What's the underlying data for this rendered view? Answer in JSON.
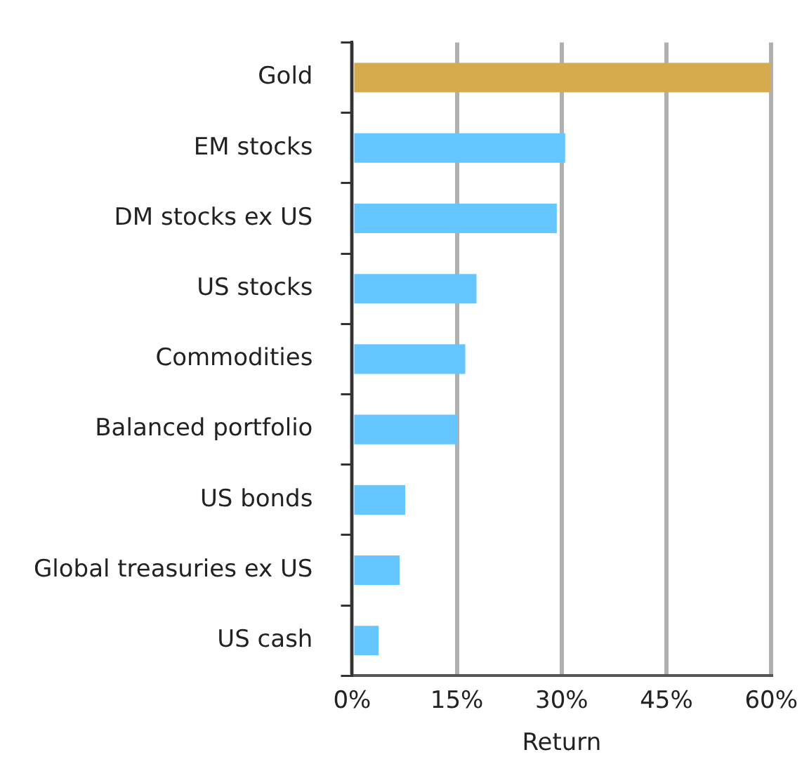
{
  "chart_data": {
    "type": "bar",
    "orientation": "horizontal",
    "xlabel": "Return",
    "categories": [
      "Gold",
      "EM stocks",
      "DM stocks ex US",
      "US stocks",
      "Commodities",
      "Balanced portfolio",
      "US bonds",
      "Global treasuries ex US",
      "US cash"
    ],
    "values": [
      60,
      30.5,
      29.3,
      17.8,
      16.2,
      15.1,
      7.6,
      6.8,
      3.8
    ],
    "colors": [
      "#d6aa4e",
      "#64c5ff",
      "#64c5ff",
      "#64c5ff",
      "#64c5ff",
      "#64c5ff",
      "#64c5ff",
      "#64c5ff",
      "#64c5ff"
    ],
    "xlim": [
      0,
      60
    ],
    "xticks": [
      {
        "value": 0,
        "label": "0%"
      },
      {
        "value": 15,
        "label": "15%"
      },
      {
        "value": 30,
        "label": "30%"
      },
      {
        "value": 45,
        "label": "45%"
      },
      {
        "value": 60,
        "label": "60%"
      }
    ],
    "grid": "x",
    "legend": false
  }
}
